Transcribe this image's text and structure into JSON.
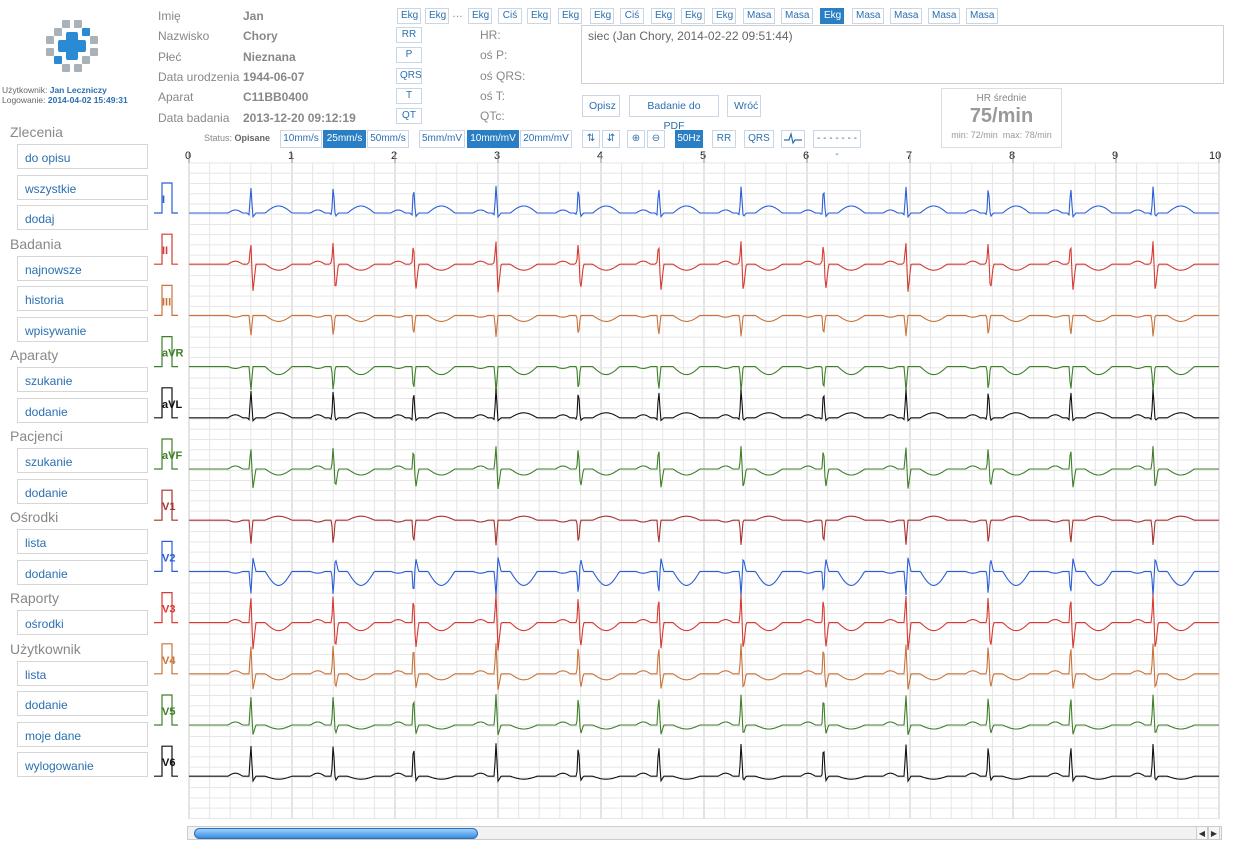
{
  "user": {
    "label": "Użytkownik:",
    "name": "Jan Leczniczy",
    "login_label": "Logowanie:",
    "login_time": "2014-04-02 15:49:31"
  },
  "sidebar": [
    {
      "title": "Zlecenia",
      "items": [
        "do opisu",
        "wszystkie",
        "dodaj"
      ]
    },
    {
      "title": "Badania",
      "items": [
        "najnowsze",
        "historia",
        "wpisywanie"
      ]
    },
    {
      "title": "Aparaty",
      "items": [
        "szukanie",
        "dodanie"
      ]
    },
    {
      "title": "Pacjenci",
      "items": [
        "szukanie",
        "dodanie"
      ]
    },
    {
      "title": "Ośrodki",
      "items": [
        "lista",
        "dodanie"
      ]
    },
    {
      "title": "Raporty",
      "items": [
        "ośrodki"
      ]
    },
    {
      "title": "Użytkownik",
      "items": [
        "lista",
        "dodanie",
        "moje dane",
        "wylogowanie"
      ]
    }
  ],
  "patient": {
    "labels": [
      "Imię",
      "Nazwisko",
      "Płeć",
      "Data urodzenia",
      "Aparat",
      "Data badania"
    ],
    "values": [
      "Jan",
      "Chory",
      "Nieznana",
      "1944-06-07",
      "C11BB0400",
      "2013-12-20 09:12:19"
    ]
  },
  "exam_tabs": [
    "Ekg",
    "Ekg",
    "…",
    "Ekg",
    "Ciś",
    "Ekg",
    "Ekg",
    "Ekg",
    "Ciś",
    "Ekg",
    "Ekg",
    "Ekg",
    "Masa",
    "Masa",
    "Ekg",
    "Masa",
    "Masa",
    "Masa",
    "Masa"
  ],
  "active_tab_index": 14,
  "measure_buttons": [
    "RR",
    "P",
    "QRS",
    "T",
    "QT"
  ],
  "measure_labels": [
    "HR:",
    "oś P:",
    "oś QRS:",
    "oś T:",
    "QTc:"
  ],
  "comment_text": "siec (Jan Chory, 2014-02-22 09:51:44)",
  "actions": [
    "Opisz",
    "Badanie do PDF",
    "Wróć"
  ],
  "hr": {
    "title": "HR średnie",
    "value": "75/min",
    "min": "min: 72/min",
    "max": "max: 78/min"
  },
  "toolbar": {
    "status_label": "Status:",
    "status_value": "Opisane",
    "speeds": [
      "10mm/s",
      "25mm/s",
      "50mm/s"
    ],
    "active_speed": 1,
    "gains": [
      "5mm/mV",
      "10mm/mV",
      "20mm/mV"
    ],
    "active_gain": 1,
    "filter": "50Hz",
    "rr": "RR",
    "qrs": "QRS",
    "dashes": "- - - - - - - -"
  },
  "time_axis": [
    "0",
    "1",
    "2",
    "3",
    "4",
    "5",
    "6",
    "7",
    "8",
    "9",
    "10"
  ],
  "leads": [
    {
      "name": "I",
      "color": "#2b5fd8"
    },
    {
      "name": "II",
      "color": "#d63a32"
    },
    {
      "name": "III",
      "color": "#c9733a"
    },
    {
      "name": "aVR",
      "color": "#3f7f2a"
    },
    {
      "name": "aVL",
      "color": "#111111"
    },
    {
      "name": "aVF",
      "color": "#3f7f2a"
    },
    {
      "name": "V1",
      "color": "#a8322e"
    },
    {
      "name": "V2",
      "color": "#2b5fd8"
    },
    {
      "name": "V3",
      "color": "#d63a32"
    },
    {
      "name": "V4",
      "color": "#c9733a"
    },
    {
      "name": "V5",
      "color": "#3f7f2a"
    },
    {
      "name": "V6",
      "color": "#111111"
    }
  ]
}
